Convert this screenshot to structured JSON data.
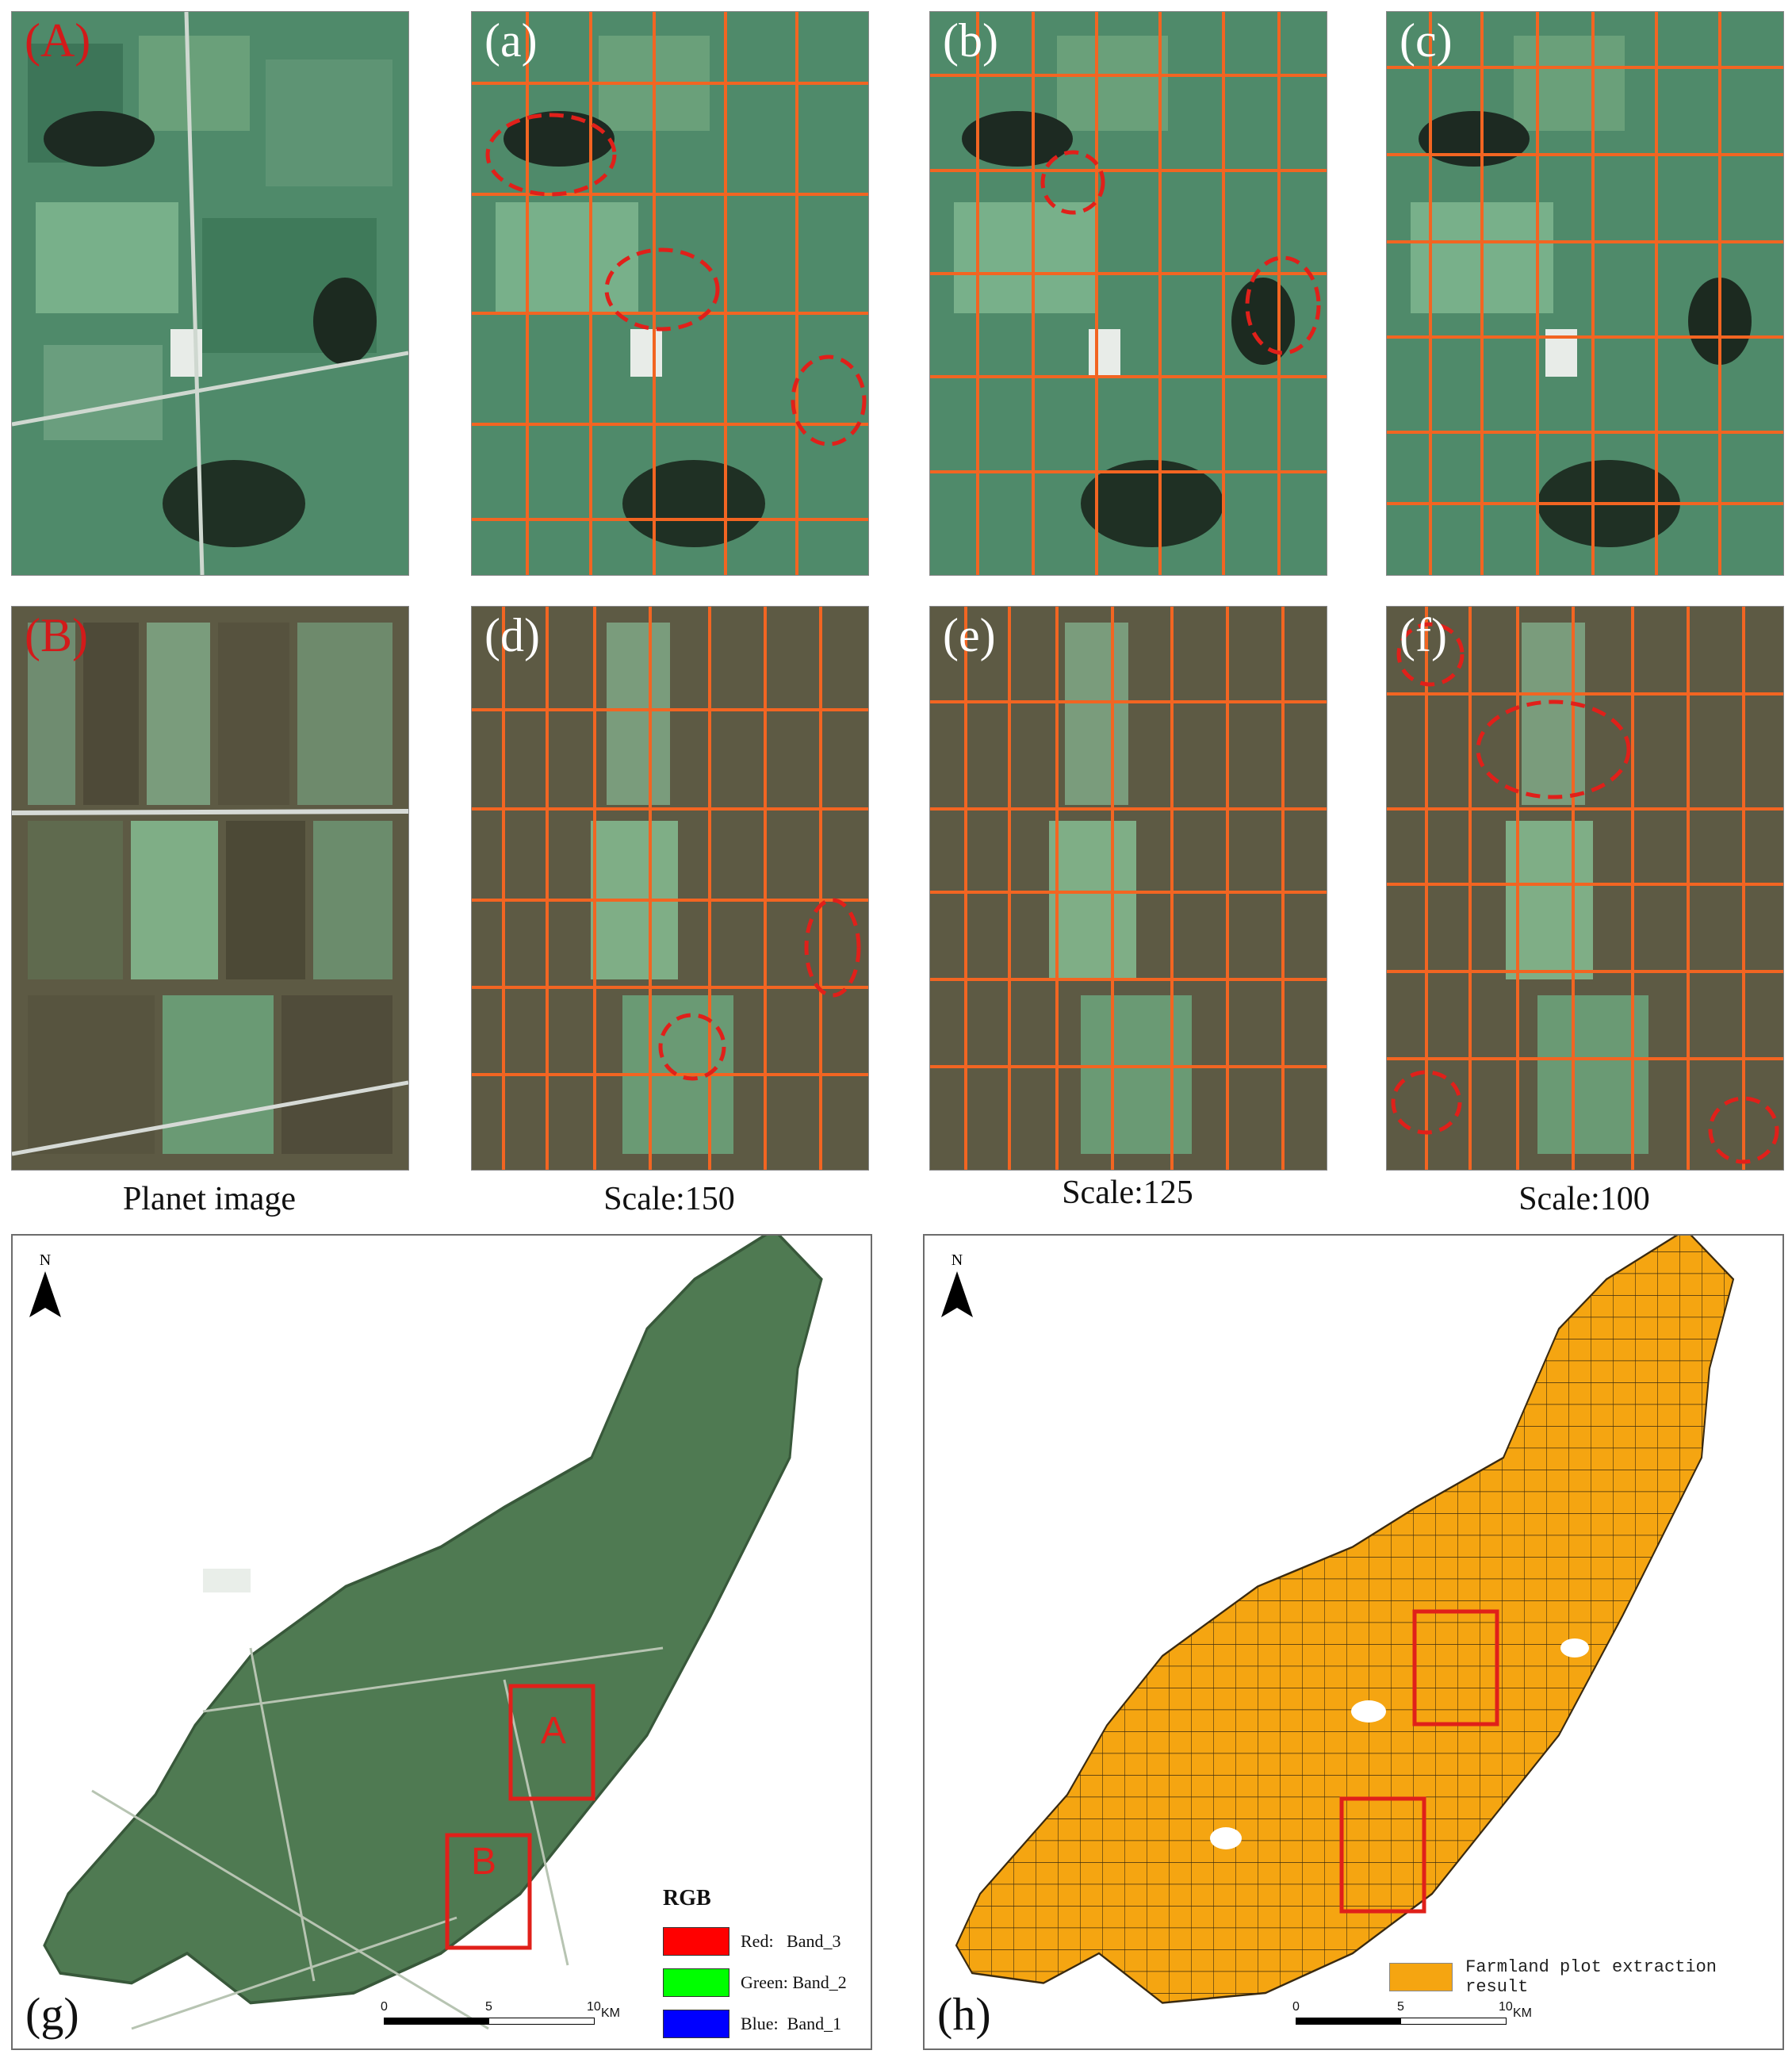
{
  "panels_top": [
    {
      "label": "(A)",
      "label_red": true
    },
    {
      "label": "(a)",
      "label_red": false
    },
    {
      "label": "(b)",
      "label_red": false
    },
    {
      "label": "(c)",
      "label_red": false
    }
  ],
  "panels_mid": [
    {
      "label": "(B)",
      "label_red": true
    },
    {
      "label": "(d)",
      "label_red": false
    },
    {
      "label": "(e)",
      "label_red": false
    },
    {
      "label": "(f)",
      "label_red": false
    }
  ],
  "captions": [
    "Planet image",
    "Scale:150",
    "Scale:125",
    "Scale:100"
  ],
  "map_g": {
    "tag": "(g)",
    "north": "N",
    "box_a": "A",
    "box_b": "B",
    "legend_title": "RGB",
    "legend": [
      {
        "label": "Red:   Band_3",
        "color": "#ff0000"
      },
      {
        "label": "Green: Band_2",
        "color": "#00ff00"
      },
      {
        "label": "Blue:  Band_1",
        "color": "#0000ff"
      }
    ],
    "scale_ticks": [
      "0",
      "5",
      "10"
    ],
    "scale_unit": "KM"
  },
  "map_h": {
    "tag": "(h)",
    "north": "N",
    "legend_label": "Farmland plot extraction result",
    "scale_ticks": [
      "0",
      "5",
      "10"
    ],
    "scale_unit": "KM"
  },
  "colors": {
    "field_boundary": "#f26522",
    "highlight_circle": "#e0201a",
    "farmland_fill": "#f5a511",
    "area_box": "#e0201a"
  }
}
